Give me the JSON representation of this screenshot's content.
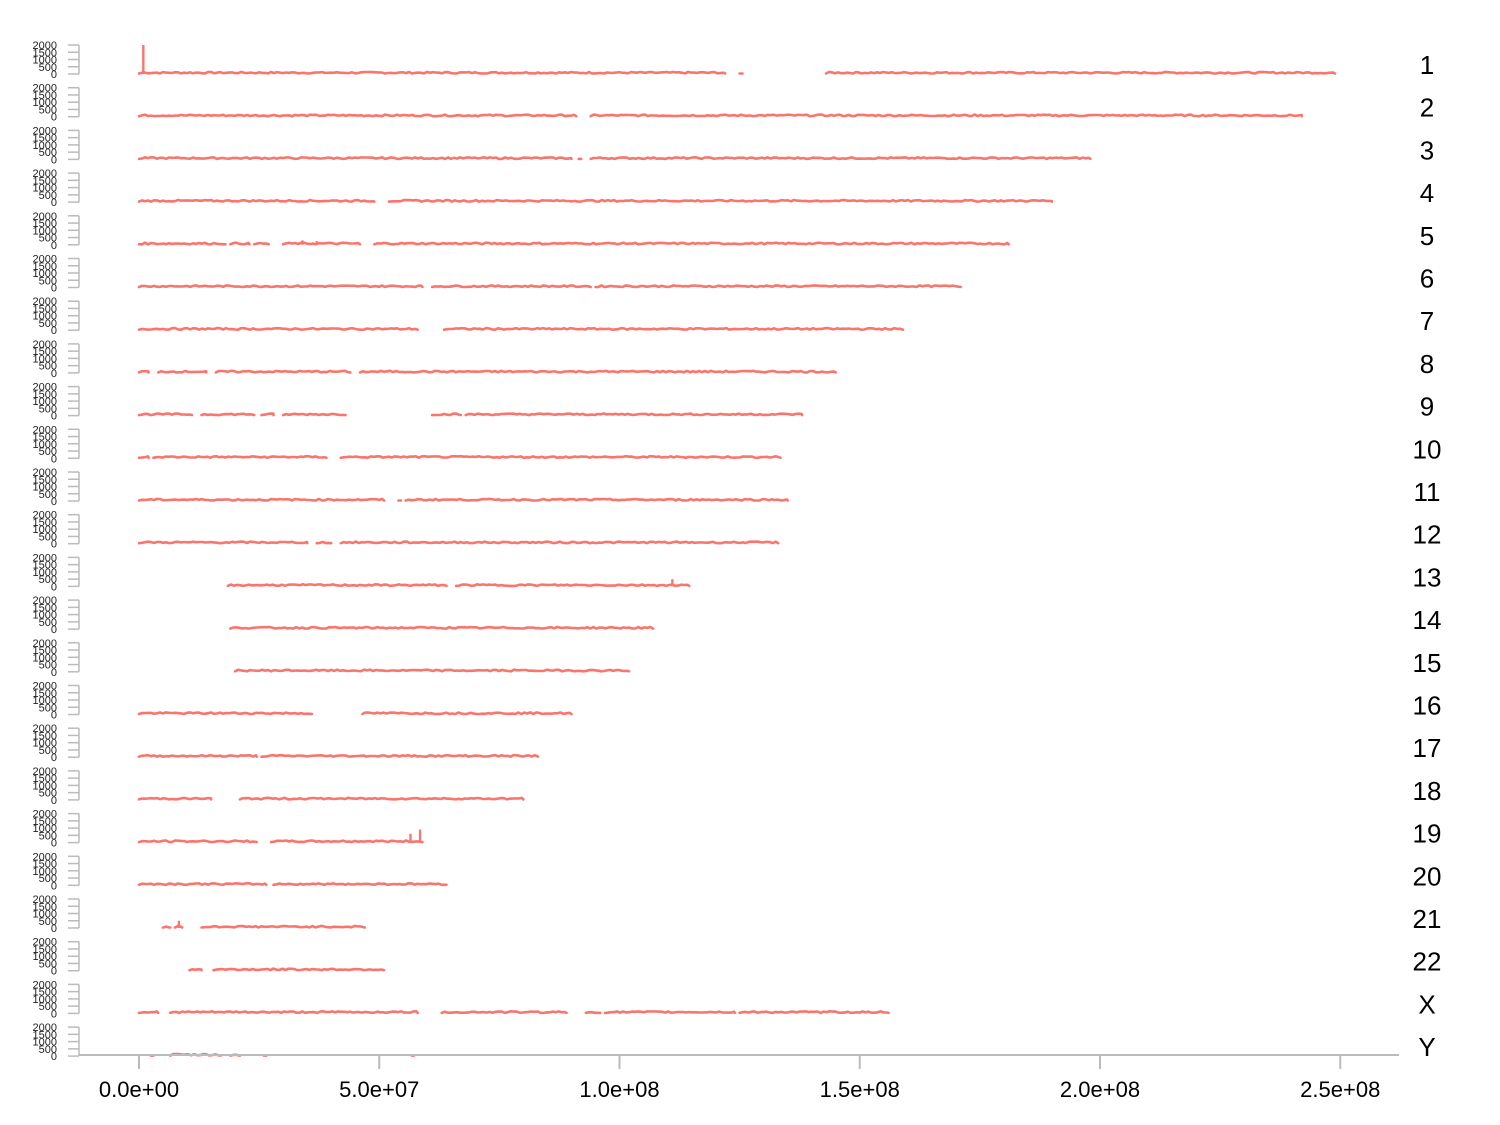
{
  "chart_data": {
    "type": "line",
    "title": "",
    "xlabel": "",
    "ylabel": "",
    "xlim": [
      -25000000,
      260000000.0
    ],
    "ylim": [
      0,
      2000
    ],
    "x_ticks": [
      0,
      50000000,
      100000000,
      150000000,
      200000000,
      250000000
    ],
    "x_tick_labels": [
      "0.0e+00",
      "5.0e+07",
      "1.0e+08",
      "1.5e+08",
      "2.0e+08",
      "2.5e+08"
    ],
    "y_ticks": [
      0,
      500,
      1000,
      1500,
      2000
    ],
    "y_tick_labels": [
      "0",
      "500",
      "1000",
      "1500",
      "2000"
    ],
    "grid": false,
    "legend": "none",
    "color": "#F8766D",
    "axis_color": "#BBBBBB",
    "panels": [
      {
        "name": "1",
        "segments": [
          [
            0,
            122000000
          ],
          [
            125000000,
            125600000
          ],
          [
            143000000,
            248900000
          ]
        ],
        "peaks": [
          [
            900000,
            2000
          ]
        ]
      },
      {
        "name": "2",
        "segments": [
          [
            0,
            91000000
          ],
          [
            94000000,
            242000000
          ]
        ],
        "peaks": []
      },
      {
        "name": "3",
        "segments": [
          [
            0,
            90000000
          ],
          [
            91500000,
            92000000
          ],
          [
            94000000,
            198000000
          ]
        ],
        "peaks": []
      },
      {
        "name": "4",
        "segments": [
          [
            0,
            49000000
          ],
          [
            52000000,
            190000000
          ]
        ],
        "peaks": []
      },
      {
        "name": "5",
        "segments": [
          [
            0,
            18000000
          ],
          [
            19000000,
            23000000
          ],
          [
            24000000,
            27000000
          ],
          [
            30000000,
            46000000
          ],
          [
            49000000,
            181000000
          ]
        ],
        "peaks": [
          [
            34000000,
            300
          ],
          [
            37000000,
            250
          ]
        ]
      },
      {
        "name": "6",
        "segments": [
          [
            0,
            59000000
          ],
          [
            61000000,
            94000000
          ],
          [
            95000000,
            171000000
          ]
        ],
        "peaks": []
      },
      {
        "name": "7",
        "segments": [
          [
            0,
            58000000
          ],
          [
            63500000,
            159000000
          ]
        ],
        "peaks": []
      },
      {
        "name": "8",
        "segments": [
          [
            0,
            2000000
          ],
          [
            4000000,
            14000000
          ],
          [
            16000000,
            44000000
          ],
          [
            46000000,
            145000000
          ]
        ],
        "peaks": []
      },
      {
        "name": "9",
        "segments": [
          [
            0,
            11000000
          ],
          [
            13000000,
            24000000
          ],
          [
            25500000,
            28000000
          ],
          [
            30000000,
            43000000
          ],
          [
            61000000,
            67000000
          ],
          [
            68000000,
            138000000
          ]
        ],
        "peaks": []
      },
      {
        "name": "10",
        "segments": [
          [
            0,
            2000000
          ],
          [
            3000000,
            39000000
          ],
          [
            42000000,
            133500000
          ]
        ],
        "peaks": []
      },
      {
        "name": "11",
        "segments": [
          [
            0,
            51000000
          ],
          [
            54000000,
            54500000
          ],
          [
            55500000,
            135000000
          ]
        ],
        "peaks": []
      },
      {
        "name": "12",
        "segments": [
          [
            0,
            35000000
          ],
          [
            37000000,
            40000000
          ],
          [
            42000000,
            133000000
          ]
        ],
        "peaks": []
      },
      {
        "name": "13",
        "segments": [
          [
            18500000,
            64000000
          ],
          [
            66000000,
            114500000
          ]
        ],
        "peaks": [
          [
            111000000,
            500
          ]
        ]
      },
      {
        "name": "14",
        "segments": [
          [
            19000000,
            107000000
          ]
        ],
        "peaks": []
      },
      {
        "name": "15",
        "segments": [
          [
            20000000,
            102000000
          ]
        ],
        "peaks": []
      },
      {
        "name": "16",
        "segments": [
          [
            0,
            36000000
          ],
          [
            46500000,
            90000000
          ]
        ],
        "peaks": []
      },
      {
        "name": "17",
        "segments": [
          [
            0,
            24500000
          ],
          [
            25500000,
            83000000
          ]
        ],
        "peaks": []
      },
      {
        "name": "18",
        "segments": [
          [
            0,
            15000000
          ],
          [
            21000000,
            80000000
          ]
        ],
        "peaks": []
      },
      {
        "name": "19",
        "segments": [
          [
            0,
            24500000
          ],
          [
            27500000,
            59000000
          ]
        ],
        "peaks": [
          [
            56500000,
            600
          ],
          [
            58500000,
            900
          ]
        ]
      },
      {
        "name": "20",
        "segments": [
          [
            0,
            26500000
          ],
          [
            28000000,
            64000000
          ]
        ],
        "peaks": []
      },
      {
        "name": "21",
        "segments": [
          [
            5000000,
            6500000
          ],
          [
            7500000,
            9000000
          ],
          [
            13000000,
            47000000
          ]
        ],
        "peaks": [
          [
            8300000,
            500
          ]
        ]
      },
      {
        "name": "22",
        "segments": [
          [
            10500000,
            13000000
          ],
          [
            15500000,
            51000000
          ]
        ],
        "peaks": []
      },
      {
        "name": "X",
        "segments": [
          [
            0,
            4000000
          ],
          [
            6500000,
            58000000
          ],
          [
            63000000,
            89000000
          ],
          [
            93000000,
            96000000
          ],
          [
            97000000,
            124000000
          ],
          [
            125000000,
            156000000
          ]
        ],
        "peaks": []
      },
      {
        "name": "Y",
        "segments": [
          [
            2500000,
            3000000
          ],
          [
            6500000,
            17000000
          ],
          [
            19000000,
            21000000
          ],
          [
            26000000,
            26500000
          ],
          [
            56800000,
            57200000
          ]
        ],
        "peaks": []
      }
    ]
  }
}
